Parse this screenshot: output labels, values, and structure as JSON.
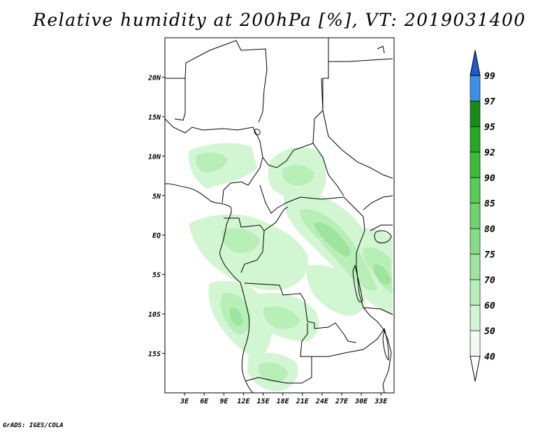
{
  "title": "Relative humidity at 200hPa [%], VT: 2019031400",
  "credit": "GrADS: IGES/COLA",
  "map": {
    "projection": "lat-lon",
    "lon_range": [
      0,
      35
    ],
    "lat_range": [
      -20,
      25
    ],
    "x_ticks": [
      "3E",
      "6E",
      "9E",
      "12E",
      "15E",
      "18E",
      "21E",
      "24E",
      "27E",
      "30E",
      "33E"
    ],
    "y_ticks": [
      "20N",
      "15N",
      "10N",
      "5N",
      "EQ",
      "5S",
      "10S",
      "15S"
    ],
    "background": "#ffffff",
    "coastline_color": "#000000"
  },
  "colorbar": {
    "labels": [
      "40",
      "50",
      "60",
      "70",
      "75",
      "80",
      "85",
      "90",
      "92",
      "95",
      "97",
      "99"
    ],
    "colors": [
      "#f0fcf0",
      "#d2f6d2",
      "#b7efb6",
      "#9ee49e",
      "#86dd85",
      "#6fd46d",
      "#59cb57",
      "#3cbb3a",
      "#26a825",
      "#178c17",
      "#3f8fe8",
      "#2a74dc",
      "#1f5cc9"
    ],
    "bottom_arrow_color": "#ffffff",
    "top_arrow_color": "#1f5cc9"
  }
}
